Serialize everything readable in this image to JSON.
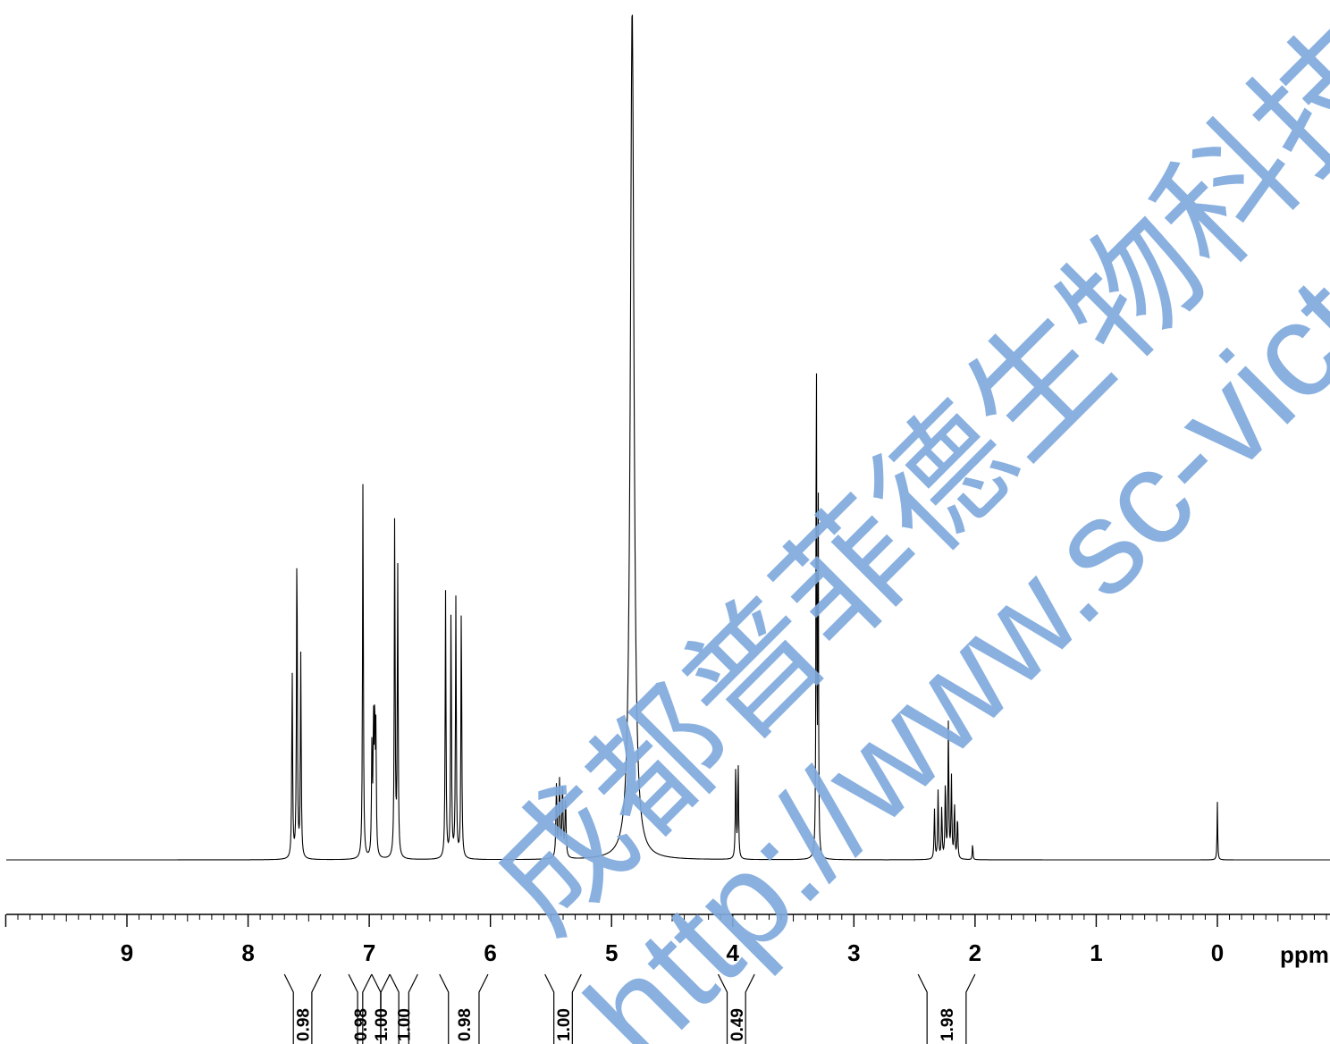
{
  "chart_data": {
    "type": "line",
    "title": "",
    "xlabel": "ppm",
    "ylabel": "",
    "x_reversed": true,
    "xlim": [
      10.0,
      -0.95
    ],
    "ylim": [
      0,
      1.0
    ],
    "grid": false,
    "x_major_ticks": [
      {
        "value": 9,
        "label": "9"
      },
      {
        "value": 8,
        "label": "8"
      },
      {
        "value": 7,
        "label": "7"
      },
      {
        "value": 6,
        "label": "6"
      },
      {
        "value": 5,
        "label": "5"
      },
      {
        "value": 4,
        "label": "4"
      },
      {
        "value": 3,
        "label": "3"
      },
      {
        "value": 2,
        "label": "2"
      },
      {
        "value": 1,
        "label": "1"
      },
      {
        "value": 0,
        "label": "0"
      }
    ],
    "x_minor_step": 0.1,
    "peaks": [
      {
        "ppm": 7.636,
        "height": 0.222,
        "width": 0.004
      },
      {
        "ppm": 7.597,
        "height": 0.375,
        "width": 0.004
      },
      {
        "ppm": 7.565,
        "height": 0.238,
        "width": 0.004
      },
      {
        "ppm": 7.052,
        "height": 0.445,
        "width": 0.004
      },
      {
        "ppm": 6.978,
        "height": 0.128,
        "width": 0.004
      },
      {
        "ppm": 6.965,
        "height": 0.148,
        "width": 0.004
      },
      {
        "ppm": 6.955,
        "height": 0.155,
        "width": 0.004
      },
      {
        "ppm": 6.945,
        "height": 0.14,
        "width": 0.004
      },
      {
        "ppm": 6.79,
        "height": 0.4,
        "width": 0.004
      },
      {
        "ppm": 6.765,
        "height": 0.339,
        "width": 0.004
      },
      {
        "ppm": 6.37,
        "height": 0.313,
        "width": 0.004
      },
      {
        "ppm": 6.325,
        "height": 0.293,
        "width": 0.004
      },
      {
        "ppm": 6.285,
        "height": 0.305,
        "width": 0.004
      },
      {
        "ppm": 6.24,
        "height": 0.3,
        "width": 0.004
      },
      {
        "ppm": 5.455,
        "height": 0.085,
        "width": 0.005
      },
      {
        "ppm": 5.43,
        "height": 0.09,
        "width": 0.005
      },
      {
        "ppm": 5.405,
        "height": 0.083,
        "width": 0.005
      },
      {
        "ppm": 5.38,
        "height": 0.07,
        "width": 0.005
      },
      {
        "ppm": 4.83,
        "height": 1.0,
        "width": 0.018
      },
      {
        "ppm": 3.975,
        "height": 0.112,
        "width": 0.004
      },
      {
        "ppm": 3.955,
        "height": 0.112,
        "width": 0.004
      },
      {
        "ppm": 3.31,
        "height": 0.667,
        "width": 0.003
      },
      {
        "ppm": 3.295,
        "height": 0.468,
        "width": 0.003
      },
      {
        "ppm": 2.335,
        "height": 0.058,
        "width": 0.004
      },
      {
        "ppm": 2.305,
        "height": 0.08,
        "width": 0.004
      },
      {
        "ppm": 2.275,
        "height": 0.06,
        "width": 0.004
      },
      {
        "ppm": 2.245,
        "height": 0.09,
        "width": 0.004
      },
      {
        "ppm": 2.22,
        "height": 0.16,
        "width": 0.004
      },
      {
        "ppm": 2.195,
        "height": 0.095,
        "width": 0.004
      },
      {
        "ppm": 2.17,
        "height": 0.065,
        "width": 0.004
      },
      {
        "ppm": 2.145,
        "height": 0.05,
        "width": 0.004
      },
      {
        "ppm": 2.02,
        "height": 0.02,
        "width": 0.003
      },
      {
        "ppm": 0.0,
        "height": 0.068,
        "width": 0.003
      }
    ],
    "integrals": [
      {
        "value": "0.98",
        "from": 7.7,
        "to": 7.4
      },
      {
        "value": "0.98",
        "from": 7.17,
        "to": 6.98
      },
      {
        "value": "1.00",
        "from": 6.98,
        "to": 6.83
      },
      {
        "value": "1.00",
        "from": 6.83,
        "to": 6.6
      },
      {
        "value": "0.98",
        "from": 6.42,
        "to": 6.02
      },
      {
        "value": "1.00",
        "from": 5.55,
        "to": 5.25
      },
      {
        "value": "0.49",
        "from": 4.12,
        "to": 3.82
      },
      {
        "value": "1.98",
        "from": 2.47,
        "to": 2.0
      }
    ]
  },
  "watermark": {
    "company": "成都普菲德生物科技有限",
    "url": "http://www.sc-victo",
    "color": "#7fa9dc"
  }
}
